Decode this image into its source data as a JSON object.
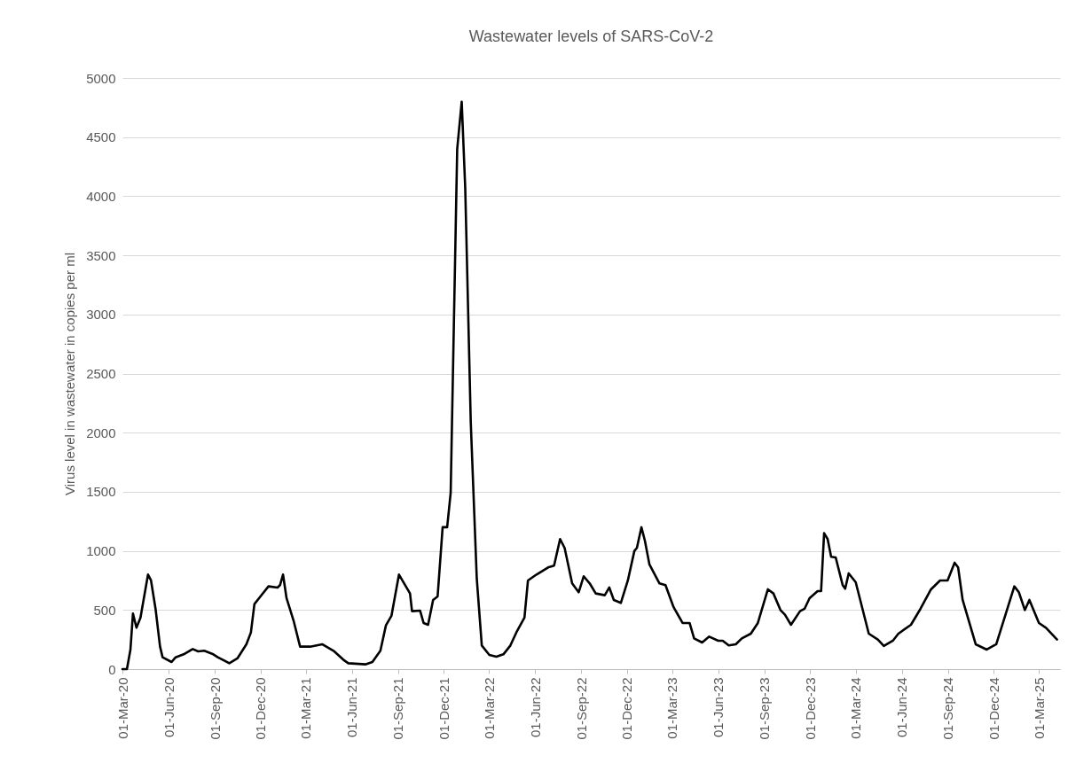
{
  "chart_data": {
    "type": "line",
    "title": "Wastewater levels of SARS-CoV-2",
    "ylabel": "Virus level in wastewater in copies per ml",
    "x": [
      "2020-03-01",
      "2020-03-10",
      "2020-03-17",
      "2020-03-22",
      "2020-03-29",
      "2020-04-06",
      "2020-04-21",
      "2020-04-27",
      "2020-05-06",
      "2020-05-15",
      "2020-05-20",
      "2020-06-07",
      "2020-06-15",
      "2020-07-01",
      "2020-07-19",
      "2020-07-30",
      "2020-08-11",
      "2020-08-29",
      "2020-09-07",
      "2020-09-30",
      "2020-10-16",
      "2020-11-03",
      "2020-11-12",
      "2020-11-19",
      "2020-12-01",
      "2020-12-17",
      "2021-01-04",
      "2021-01-09",
      "2021-01-15",
      "2021-01-22",
      "2021-02-05",
      "2021-02-18",
      "2021-03-10",
      "2021-04-03",
      "2021-04-27",
      "2021-05-15",
      "2021-05-25",
      "2021-06-28",
      "2021-07-12",
      "2021-07-28",
      "2021-08-08",
      "2021-08-19",
      "2021-09-03",
      "2021-09-25",
      "2021-09-29",
      "2021-10-15",
      "2021-10-22",
      "2021-10-31",
      "2021-11-10",
      "2021-11-19",
      "2021-11-29",
      "2021-12-08",
      "2021-12-15",
      "2021-12-28",
      "2022-01-06",
      "2022-01-13",
      "2022-01-24",
      "2022-02-05",
      "2022-02-15",
      "2022-03-02",
      "2022-03-16",
      "2022-03-30",
      "2022-04-13",
      "2022-04-26",
      "2022-05-11",
      "2022-05-18",
      "2022-06-04",
      "2022-06-27",
      "2022-07-09",
      "2022-07-21",
      "2022-07-30",
      "2022-08-14",
      "2022-08-27",
      "2022-09-06",
      "2022-09-18",
      "2022-09-30",
      "2022-10-18",
      "2022-10-27",
      "2022-11-05",
      "2022-11-19",
      "2022-12-03",
      "2022-12-16",
      "2022-12-21",
      "2022-12-30",
      "2023-01-06",
      "2023-01-15",
      "2023-02-04",
      "2023-02-16",
      "2023-03-04",
      "2023-03-22",
      "2023-04-05",
      "2023-04-14",
      "2023-04-30",
      "2023-05-14",
      "2023-06-01",
      "2023-06-10",
      "2023-06-22",
      "2023-07-06",
      "2023-07-18",
      "2023-08-05",
      "2023-08-19",
      "2023-09-08",
      "2023-09-19",
      "2023-10-03",
      "2023-10-12",
      "2023-10-24",
      "2023-11-11",
      "2023-11-20",
      "2023-11-30",
      "2023-12-16",
      "2023-12-23",
      "2023-12-29",
      "2024-01-05",
      "2024-01-12",
      "2024-01-21",
      "2024-02-04",
      "2024-02-09",
      "2024-02-16",
      "2024-03-01",
      "2024-03-27",
      "2024-04-14",
      "2024-04-26",
      "2024-05-14",
      "2024-05-25",
      "2024-06-19",
      "2024-07-08",
      "2024-07-29",
      "2024-08-16",
      "2024-08-31",
      "2024-09-14",
      "2024-09-21",
      "2024-09-30",
      "2024-10-26",
      "2024-11-17",
      "2024-12-06",
      "2025-01-11",
      "2025-01-20",
      "2025-02-01",
      "2025-02-10",
      "2025-03-01",
      "2025-03-15",
      "2025-04-06"
    ],
    "series": [
      {
        "color": "#000000",
        "values": [
          0,
          0,
          165,
          470,
          350,
          435,
          800,
          750,
          510,
          190,
          100,
          60,
          100,
          125,
          170,
          150,
          155,
          125,
          100,
          50,
          90,
          210,
          310,
          550,
          615,
          700,
          690,
          710,
          800,
          600,
          410,
          190,
          190,
          210,
          150,
          80,
          50,
          40,
          60,
          155,
          370,
          450,
          800,
          640,
          490,
          495,
          390,
          375,
          585,
          615,
          1200,
          1200,
          1490,
          4400,
          4800,
          4070,
          2090,
          765,
          200,
          120,
          105,
          125,
          200,
          320,
          435,
          750,
          800,
          860,
          875,
          1100,
          1025,
          725,
          650,
          785,
          725,
          640,
          625,
          690,
          585,
          560,
          750,
          1000,
          1025,
          1200,
          1085,
          885,
          725,
          710,
          525,
          390,
          390,
          260,
          225,
          275,
          240,
          240,
          200,
          210,
          260,
          300,
          390,
          675,
          640,
          500,
          460,
          375,
          490,
          510,
          600,
          660,
          660,
          1150,
          1100,
          950,
          945,
          710,
          680,
          810,
          735,
          300,
          250,
          195,
          240,
          300,
          375,
          510,
          675,
          750,
          750,
          900,
          860,
          585,
          210,
          165,
          210,
          700,
          650,
          500,
          585,
          390,
          350,
          250
        ]
      }
    ],
    "xlim": [
      "2020-03-01",
      "2025-04-12"
    ],
    "xticks": [
      {
        "value": "2020-03-01",
        "label": "01-Mar-20"
      },
      {
        "value": "2020-06-01",
        "label": "01-Jun-20"
      },
      {
        "value": "2020-09-01",
        "label": "01-Sep-20"
      },
      {
        "value": "2020-12-01",
        "label": "01-Dec-20"
      },
      {
        "value": "2021-03-01",
        "label": "01-Mar-21"
      },
      {
        "value": "2021-06-01",
        "label": "01-Jun-21"
      },
      {
        "value": "2021-09-01",
        "label": "01-Sep-21"
      },
      {
        "value": "2021-12-01",
        "label": "01-Dec-21"
      },
      {
        "value": "2022-03-01",
        "label": "01-Mar-22"
      },
      {
        "value": "2022-06-01",
        "label": "01-Jun-22"
      },
      {
        "value": "2022-09-01",
        "label": "01-Sep-22"
      },
      {
        "value": "2022-12-01",
        "label": "01-Dec-22"
      },
      {
        "value": "2023-03-01",
        "label": "01-Mar-23"
      },
      {
        "value": "2023-06-01",
        "label": "01-Jun-23"
      },
      {
        "value": "2023-09-01",
        "label": "01-Sep-23"
      },
      {
        "value": "2023-12-01",
        "label": "01-Dec-23"
      },
      {
        "value": "2024-03-01",
        "label": "01-Mar-24"
      },
      {
        "value": "2024-06-01",
        "label": "01-Jun-24"
      },
      {
        "value": "2024-09-01",
        "label": "01-Sep-24"
      },
      {
        "value": "2024-12-01",
        "label": "01-Dec-24"
      },
      {
        "value": "2025-03-01",
        "label": "01-Mar-25"
      }
    ],
    "ylim": [
      0,
      5000
    ],
    "yticks": [
      0,
      500,
      1000,
      1500,
      2000,
      2500,
      3000,
      3500,
      4000,
      4500,
      5000
    ],
    "grid": "y",
    "marker": "none",
    "line_style": "solid"
  }
}
